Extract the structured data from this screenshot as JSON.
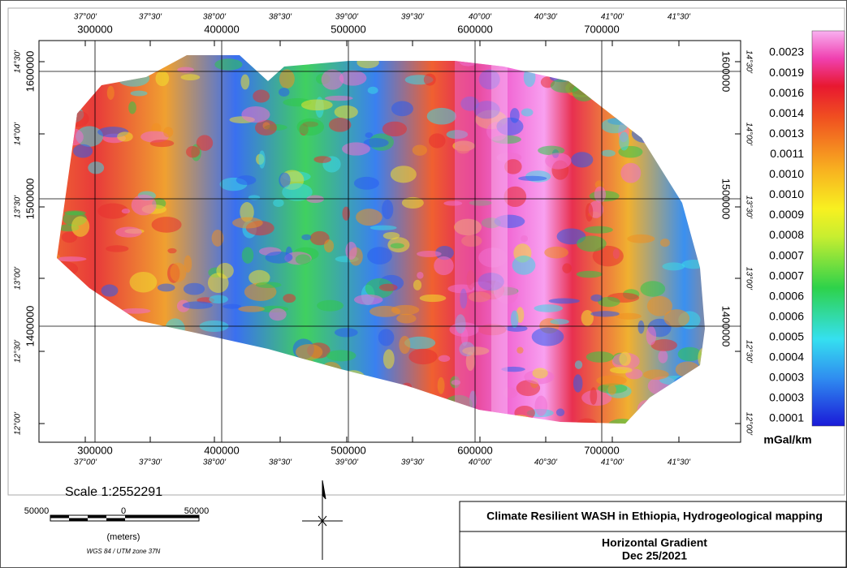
{
  "map": {
    "top_degree_labels": [
      "37°00'",
      "37°30'",
      "38°00'",
      "38°30'",
      "39°00'",
      "39°30'",
      "40°00'",
      "40°30'",
      "41°00'",
      "41°30'"
    ],
    "bottom_degree_labels": [
      "37°00'",
      "37°30'",
      "38°00'",
      "38°30'",
      "39°00'",
      "39°30'",
      "40°00'",
      "40°30'",
      "41°00'",
      "41°30'"
    ],
    "left_degree_labels": [
      "14°30'",
      "14°00'",
      "13°30'",
      "13°00'",
      "12°30'",
      "12°00'"
    ],
    "right_degree_labels": [
      "14°30'",
      "14°00'",
      "13°30'",
      "13°00'",
      "12°30'",
      "12°00'"
    ],
    "easting_labels": [
      300000,
      400000,
      500000,
      600000,
      700000
    ],
    "northing_labels": [
      1600000,
      1500000,
      1400000
    ]
  },
  "legend": {
    "labels": [
      "0.0023",
      "0.0019",
      "0.0016",
      "0.0014",
      "0.0013",
      "0.0011",
      "0.0010",
      "0.0010",
      "0.0009",
      "0.0008",
      "0.0007",
      "0.0007",
      "0.0006",
      "0.0006",
      "0.0005",
      "0.0004",
      "0.0003",
      "0.0003",
      "0.0001"
    ],
    "unit": "mGal/km"
  },
  "scale": {
    "title": "Scale 1:2552291",
    "labels": [
      "50000",
      "0",
      "50000"
    ],
    "unit": "(meters)",
    "projection": "WGS 84 / UTM zone 37N"
  },
  "title_block": {
    "project": "Climate Resilient WASH in Ethiopia, Hydrogeological mapping",
    "map_title": "Horizontal Gradient",
    "date": "Dec 25/2021"
  }
}
